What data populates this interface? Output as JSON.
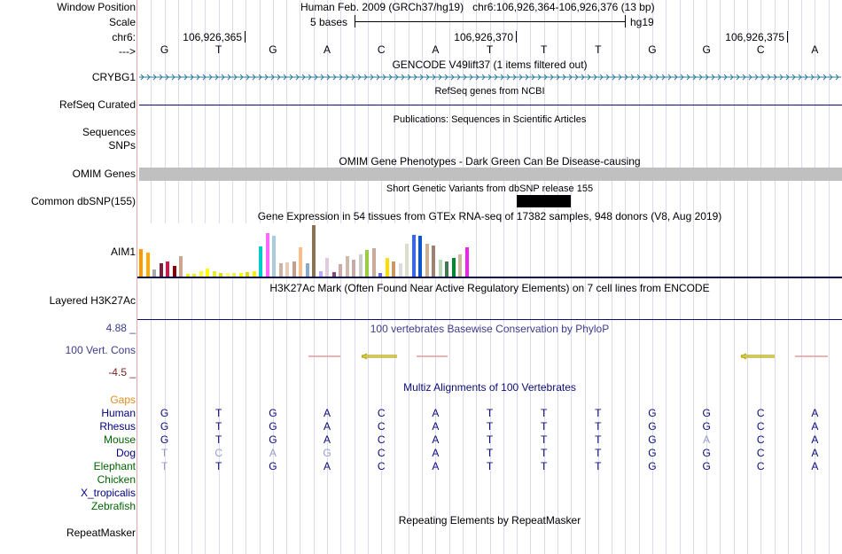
{
  "header": {
    "window_position_label": "Window Position",
    "window_position_value": "Human Feb. 2009 (GRCh37/hg19)   chr6:106,926,364-106,926,376 (13 bp)",
    "scale_label": "Scale",
    "scale_value": "5 bases",
    "scale_assembly": "hg19",
    "chrom_label": "chr6:",
    "coord_ticks": [
      "106,926,365",
      "106,926,370",
      "106,926,375"
    ],
    "strand_label": "--->",
    "bases": [
      "G",
      "T",
      "G",
      "A",
      "C",
      "A",
      "T",
      "T",
      "T",
      "G",
      "G",
      "C",
      "A"
    ]
  },
  "tracks": {
    "gencode_title": "GENCODE V49lift37 (1 items filtered out)",
    "gencode_gene": "CRYBG1",
    "refseq_title": "RefSeq genes from NCBI",
    "refseq_label": "RefSeq Curated",
    "publications_title": "Publications: Sequences in Scientific Articles",
    "sequences_label": "Sequences",
    "snps_label": "SNPs",
    "omim_title": "OMIM Gene Phenotypes - Dark Green Can Be Disease-causing",
    "omim_label": "OMIM Genes",
    "dbsnp_title": "Short Genetic Variants from dbSNP release 155",
    "dbsnp_label": "Common dbSNP(155)",
    "gtex_title": "Gene Expression in 54 tissues from GTEx RNA-seq of 17382 samples, 948 donors (V8, Aug 2019)",
    "gtex_gene": "AIM1",
    "h3k27ac_title": "H3K27Ac Mark (Often Found Near Active Regulatory Elements) on 7 cell lines from ENCODE",
    "h3k27ac_label": "Layered H3K27Ac",
    "phylop_max": "4.88 _",
    "phylop_title": "100 vertebrates Basewise Conservation by PhyloP",
    "phylop_label": "100 Vert. Cons",
    "phylop_min": "-4.5 _",
    "multiz_title": "Multiz Alignments of 100 Vertebrates",
    "gaps_label": "Gaps",
    "repeatmasker_title": "Repeating Elements by RepeatMasker",
    "repeatmasker_label": "RepeatMasker"
  },
  "gtex_expression": [
    {
      "color": "#ff9900",
      "value": 32
    },
    {
      "color": "#ffaa00",
      "value": 28
    },
    {
      "color": "#aaaaaa",
      "value": 8
    },
    {
      "color": "#7a1f3d",
      "value": 15
    },
    {
      "color": "#d4144a",
      "value": 18
    },
    {
      "color": "#8b0000",
      "value": 12
    },
    {
      "color": "#c8a890",
      "value": 24
    },
    {
      "color": "#eeee00",
      "value": 3
    },
    {
      "color": "#eeee00",
      "value": 3
    },
    {
      "color": "#ffff33",
      "value": 6
    },
    {
      "color": "#ffff00",
      "value": 9
    },
    {
      "color": "#e8e840",
      "value": 6
    },
    {
      "color": "#e0e000",
      "value": 4
    },
    {
      "color": "#ffff66",
      "value": 4
    },
    {
      "color": "#eeee55",
      "value": 4
    },
    {
      "color": "#ffff00",
      "value": 4
    },
    {
      "color": "#dddd00",
      "value": 5
    },
    {
      "color": "#ffee00",
      "value": 6
    },
    {
      "color": "#00cccc",
      "value": 35
    },
    {
      "color": "#ff66ff",
      "value": 51
    },
    {
      "color": "#aaccdd",
      "value": 48
    },
    {
      "color": "#d0b0a0",
      "value": 15
    },
    {
      "color": "#e6ccbb",
      "value": 17
    },
    {
      "color": "#c0a090",
      "value": 18
    },
    {
      "color": "#ffbb88",
      "value": 34
    },
    {
      "color": "#88aacc",
      "value": 16
    },
    {
      "color": "#8b7355",
      "value": 60
    },
    {
      "color": "#bbaaff",
      "value": 6
    },
    {
      "color": "#ddccdd",
      "value": 22
    },
    {
      "color": "#884488",
      "value": 5
    },
    {
      "color": "#ccaaaa",
      "value": 14
    },
    {
      "color": "#ccbbaa",
      "value": 24
    },
    {
      "color": "#c8a8a8",
      "value": 20
    },
    {
      "color": "#cccccc",
      "value": 26
    },
    {
      "color": "#99cc44",
      "value": 31
    },
    {
      "color": "#ccaa99",
      "value": 33
    },
    {
      "color": "#6666ff",
      "value": 4
    },
    {
      "color": "#ffdd00",
      "value": 22
    },
    {
      "color": "#cc9966",
      "value": 18
    },
    {
      "color": "#dddddd",
      "value": 15
    },
    {
      "color": "#ddddcc",
      "value": 38
    },
    {
      "color": "#3366ff",
      "value": 49
    },
    {
      "color": "#1155cc",
      "value": 48
    },
    {
      "color": "#ccb090",
      "value": 38
    },
    {
      "color": "#a08070",
      "value": 36
    },
    {
      "color": "#b8d8b8",
      "value": 20
    },
    {
      "color": "#447755",
      "value": 18
    },
    {
      "color": "#008833",
      "value": 22
    },
    {
      "color": "#ccbb99",
      "value": 26
    },
    {
      "color": "#ee22ee",
      "value": 34
    }
  ],
  "alignments": [
    {
      "species": "Human",
      "color": "#000080",
      "bases": [
        "G",
        "T",
        "G",
        "A",
        "C",
        "A",
        "T",
        "T",
        "T",
        "G",
        "G",
        "C",
        "A"
      ],
      "faded": []
    },
    {
      "species": "Rhesus",
      "color": "#000080",
      "bases": [
        "G",
        "T",
        "G",
        "A",
        "C",
        "A",
        "T",
        "T",
        "T",
        "G",
        "G",
        "C",
        "A"
      ],
      "faded": []
    },
    {
      "species": "Mouse",
      "color": "#006400",
      "bases": [
        "G",
        "T",
        "G",
        "A",
        "C",
        "A",
        "T",
        "T",
        "T",
        "G",
        "A",
        "C",
        "A"
      ],
      "faded": [
        10
      ]
    },
    {
      "species": "Dog",
      "color": "#000080",
      "bases": [
        "T",
        "C",
        "A",
        "G",
        "C",
        "A",
        "T",
        "T",
        "T",
        "G",
        "G",
        "C",
        "A"
      ],
      "faded": [
        0,
        1,
        2,
        3
      ]
    },
    {
      "species": "Elephant",
      "color": "#006400",
      "bases": [
        "T",
        "T",
        "G",
        "A",
        "C",
        "A",
        "T",
        "T",
        "T",
        "G",
        "G",
        "C",
        "A"
      ],
      "faded": [
        0
      ]
    },
    {
      "species": "Chicken",
      "color": "#006400",
      "bases": [],
      "faded": []
    },
    {
      "species": "X_tropicalis",
      "color": "#000080",
      "bases": [],
      "faded": []
    },
    {
      "species": "Zebrafish",
      "color": "#006400",
      "bases": [],
      "faded": []
    }
  ],
  "colors": {
    "gencode": "#2c7a9a",
    "refseq": "#0c0c78",
    "omim": "#1a6414",
    "phylop": "#3c3c8c",
    "phylop_min": "#7a2323",
    "gaps": "#e08c1c",
    "multiz": "#0c0c78",
    "grid": "#dcdcf0"
  }
}
